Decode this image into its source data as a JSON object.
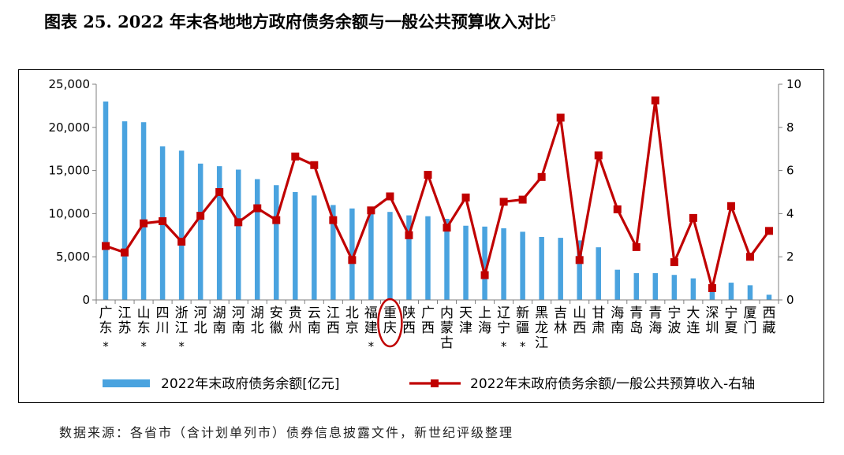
{
  "figure": {
    "title": "图表 25. 2022 年末各地地方政府债务余额与一般公共预算收入对比",
    "title_sup": "5",
    "source": "数据来源：各省市（含计划单列市）债券信息披露文件，新世纪评级整理"
  },
  "chart_data": {
    "type": "bar",
    "categories": [
      "广东",
      "江苏",
      "山东",
      "四川",
      "浙江",
      "河北",
      "湖南",
      "河南",
      "湖北",
      "安徽",
      "贵州",
      "云南",
      "江西",
      "北京",
      "福建",
      "重庆",
      "陕西",
      "广西",
      "内蒙古",
      "天津",
      "上海",
      "辽宁",
      "新疆",
      "黑龙江",
      "吉林",
      "山西",
      "甘肃",
      "海南",
      "青岛",
      "青海",
      "宁波",
      "大连",
      "深圳",
      "宁夏",
      "厦门",
      "西藏"
    ],
    "asterisk_categories": [
      "广东",
      "山东",
      "浙江",
      "福建",
      "辽宁",
      "新疆"
    ],
    "highlight_category": "重庆",
    "series": [
      {
        "name": "2022年末政府债务余额[亿元]",
        "type": "bar",
        "axis": "left",
        "color": "#4aa3df",
        "values": [
          23000,
          20700,
          20600,
          17800,
          17300,
          15800,
          15500,
          15100,
          14000,
          13300,
          12500,
          12100,
          11000,
          10600,
          10500,
          10200,
          9800,
          9700,
          9400,
          8600,
          8500,
          8300,
          7900,
          7300,
          7200,
          6900,
          6100,
          3500,
          3100,
          3100,
          2900,
          2500,
          1000,
          2000,
          1700,
          600
        ]
      },
      {
        "name": "2022年末政府债务余额/一般公共预算收入-右轴",
        "type": "line",
        "axis": "right",
        "color": "#c00000",
        "values": [
          2.5,
          2.2,
          3.55,
          3.65,
          2.7,
          3.9,
          5.0,
          3.6,
          4.25,
          3.7,
          6.65,
          6.25,
          3.7,
          1.85,
          4.15,
          4.8,
          3.0,
          5.8,
          3.35,
          4.75,
          1.15,
          4.55,
          4.65,
          5.7,
          8.45,
          1.85,
          6.7,
          4.2,
          2.45,
          9.25,
          1.75,
          3.8,
          0.55,
          4.35,
          2.0,
          3.2
        ]
      }
    ],
    "y_left": {
      "min": 0,
      "max": 25000,
      "ticks": [
        0,
        5000,
        10000,
        15000,
        20000,
        25000
      ],
      "tick_labels": [
        "0",
        "5,000",
        "10,000",
        "15,000",
        "20,000",
        "25,000"
      ]
    },
    "y_right": {
      "min": 0,
      "max": 10,
      "ticks": [
        0,
        2,
        4,
        6,
        8,
        10
      ],
      "tick_labels": [
        "0",
        "2",
        "4",
        "6",
        "8",
        "10"
      ]
    },
    "grid": false,
    "legend_position": "bottom"
  }
}
